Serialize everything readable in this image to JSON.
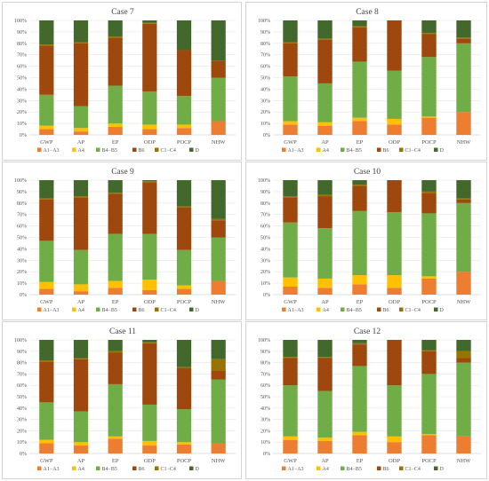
{
  "figure": {
    "legend_entries": [
      "A1−A3",
      "A4",
      "B4−B5",
      "B6",
      "C1−C4",
      "D"
    ],
    "colors": {
      "A1−A3": "#ed7d31",
      "A4": "#ffc000",
      "B4−B5": "#70ad47",
      "B6": "#9e480e",
      "C1−C4": "#997300",
      "D": "#43682b"
    }
  },
  "chart_data": [
    {
      "type": "bar",
      "stacked": true,
      "title": "Case 7",
      "categories": [
        "GWP",
        "AP",
        "EP",
        "ODP",
        "POCP",
        "NHW"
      ],
      "ylim": [
        0,
        100
      ],
      "yticks": [
        "0%",
        "10%",
        "20%",
        "30%",
        "40%",
        "50%",
        "60%",
        "70%",
        "80%",
        "90%",
        "100%"
      ],
      "grid": true,
      "legend": "bottom",
      "series": [
        {
          "name": "A1−A3",
          "values": [
            5,
            3,
            7,
            5,
            6,
            12
          ]
        },
        {
          "name": "A4",
          "values": [
            3,
            3,
            3,
            4,
            3,
            0
          ]
        },
        {
          "name": "B4−B5",
          "values": [
            27,
            19,
            33,
            29,
            25,
            38
          ]
        },
        {
          "name": "B6",
          "values": [
            43,
            55,
            42,
            59,
            40,
            15
          ]
        },
        {
          "name": "C1−C4",
          "values": [
            1,
            1,
            1,
            1,
            0,
            0
          ]
        },
        {
          "name": "D",
          "values": [
            21,
            19,
            14,
            2,
            26,
            35
          ]
        }
      ]
    },
    {
      "type": "bar",
      "stacked": true,
      "title": "Case 8",
      "categories": [
        "GWP",
        "AP",
        "EP",
        "ODP",
        "POCP",
        "NHW"
      ],
      "ylim": [
        0,
        100
      ],
      "yticks": [
        "0%",
        "10%",
        "20%",
        "30%",
        "40%",
        "50%",
        "60%",
        "70%",
        "80%",
        "90%",
        "100%"
      ],
      "grid": true,
      "legend": "bottom",
      "series": [
        {
          "name": "A1−A3",
          "values": [
            9,
            8,
            12,
            9,
            15,
            20
          ]
        },
        {
          "name": "A4",
          "values": [
            3,
            3,
            3,
            5,
            1,
            0
          ]
        },
        {
          "name": "B4−B5",
          "values": [
            39,
            34,
            49,
            42,
            52,
            60
          ]
        },
        {
          "name": "B6",
          "values": [
            29,
            38,
            30,
            44,
            20,
            4
          ]
        },
        {
          "name": "C1−C4",
          "values": [
            1,
            1,
            1,
            0,
            1,
            1
          ]
        },
        {
          "name": "D",
          "values": [
            19,
            16,
            5,
            0,
            11,
            15
          ]
        }
      ]
    },
    {
      "type": "bar",
      "stacked": true,
      "title": "Case 9",
      "categories": [
        "GWP",
        "AP",
        "EP",
        "ODP",
        "POCP",
        "NHW"
      ],
      "ylim": [
        0,
        100
      ],
      "yticks": [
        "0%",
        "10%",
        "20%",
        "30%",
        "40%",
        "50%",
        "60%",
        "70%",
        "80%",
        "90%",
        "100%"
      ],
      "grid": true,
      "legend": "bottom",
      "series": [
        {
          "name": "A1−A3",
          "values": [
            5,
            3,
            6,
            4,
            5,
            12
          ]
        },
        {
          "name": "A4",
          "values": [
            6,
            6,
            6,
            9,
            3,
            0
          ]
        },
        {
          "name": "B4−B5",
          "values": [
            36,
            30,
            41,
            40,
            31,
            38
          ]
        },
        {
          "name": "B6",
          "values": [
            36,
            46,
            35,
            45,
            37,
            15
          ]
        },
        {
          "name": "C1−C4",
          "values": [
            1,
            1,
            1,
            1,
            1,
            1
          ]
        },
        {
          "name": "D",
          "values": [
            16,
            14,
            11,
            1,
            23,
            34
          ]
        }
      ]
    },
    {
      "type": "bar",
      "stacked": true,
      "title": "Case 10",
      "categories": [
        "GWP",
        "AP",
        "EP",
        "ODP",
        "POCP",
        "NHW"
      ],
      "ylim": [
        0,
        100
      ],
      "yticks": [
        "0%",
        "10%",
        "20%",
        "30%",
        "40%",
        "50%",
        "60%",
        "70%",
        "80%",
        "90%",
        "100%"
      ],
      "grid": true,
      "legend": "bottom",
      "series": [
        {
          "name": "A1−A3",
          "values": [
            7,
            6,
            9,
            6,
            14,
            20
          ]
        },
        {
          "name": "A4",
          "values": [
            8,
            8,
            8,
            11,
            2,
            0
          ]
        },
        {
          "name": "B4−B5",
          "values": [
            48,
            44,
            56,
            55,
            55,
            60
          ]
        },
        {
          "name": "B6",
          "values": [
            22,
            28,
            22,
            28,
            18,
            3
          ]
        },
        {
          "name": "C1−C4",
          "values": [
            1,
            1,
            1,
            0,
            1,
            1
          ]
        },
        {
          "name": "D",
          "values": [
            14,
            13,
            4,
            0,
            10,
            16
          ]
        }
      ]
    },
    {
      "type": "bar",
      "stacked": true,
      "title": "Case 11",
      "categories": [
        "GWP",
        "AP",
        "EP",
        "ODP",
        "POCP",
        "NHW"
      ],
      "ylim": [
        0,
        100
      ],
      "yticks": [
        "0%",
        "10%",
        "20%",
        "30%",
        "40%",
        "50%",
        "60%",
        "70%",
        "80%",
        "90%",
        "100%"
      ],
      "grid": true,
      "legend": "bottom",
      "series": [
        {
          "name": "A1−A3",
          "values": [
            9,
            7,
            13,
            7,
            8,
            9
          ]
        },
        {
          "name": "A4",
          "values": [
            3,
            3,
            2,
            4,
            2,
            0
          ]
        },
        {
          "name": "B4−B5",
          "values": [
            33,
            27,
            46,
            32,
            29,
            56
          ]
        },
        {
          "name": "B6",
          "values": [
            36,
            46,
            28,
            54,
            36,
            8
          ]
        },
        {
          "name": "C1−C4",
          "values": [
            1,
            1,
            1,
            1,
            1,
            10
          ]
        },
        {
          "name": "D",
          "values": [
            18,
            16,
            10,
            2,
            24,
            17
          ]
        }
      ]
    },
    {
      "type": "bar",
      "stacked": true,
      "title": "Case 12",
      "categories": [
        "GWP",
        "AP",
        "EP",
        "ODP",
        "POCP",
        "NHW"
      ],
      "ylim": [
        0,
        100
      ],
      "yticks": [
        "0%",
        "10%",
        "20%",
        "30%",
        "40%",
        "50%",
        "60%",
        "70%",
        "80%",
        "90%",
        "100%"
      ],
      "grid": true,
      "legend": "bottom",
      "series": [
        {
          "name": "A1−A3",
          "values": [
            12,
            11,
            16,
            10,
            16,
            15
          ]
        },
        {
          "name": "A4",
          "values": [
            3,
            3,
            3,
            5,
            1,
            0
          ]
        },
        {
          "name": "B4−B5",
          "values": [
            45,
            41,
            58,
            45,
            53,
            65
          ]
        },
        {
          "name": "B6",
          "values": [
            24,
            29,
            19,
            40,
            20,
            4
          ]
        },
        {
          "name": "C1−C4",
          "values": [
            1,
            1,
            1,
            0,
            1,
            6
          ]
        },
        {
          "name": "D",
          "values": [
            15,
            15,
            3,
            0,
            9,
            10
          ]
        }
      ]
    }
  ]
}
